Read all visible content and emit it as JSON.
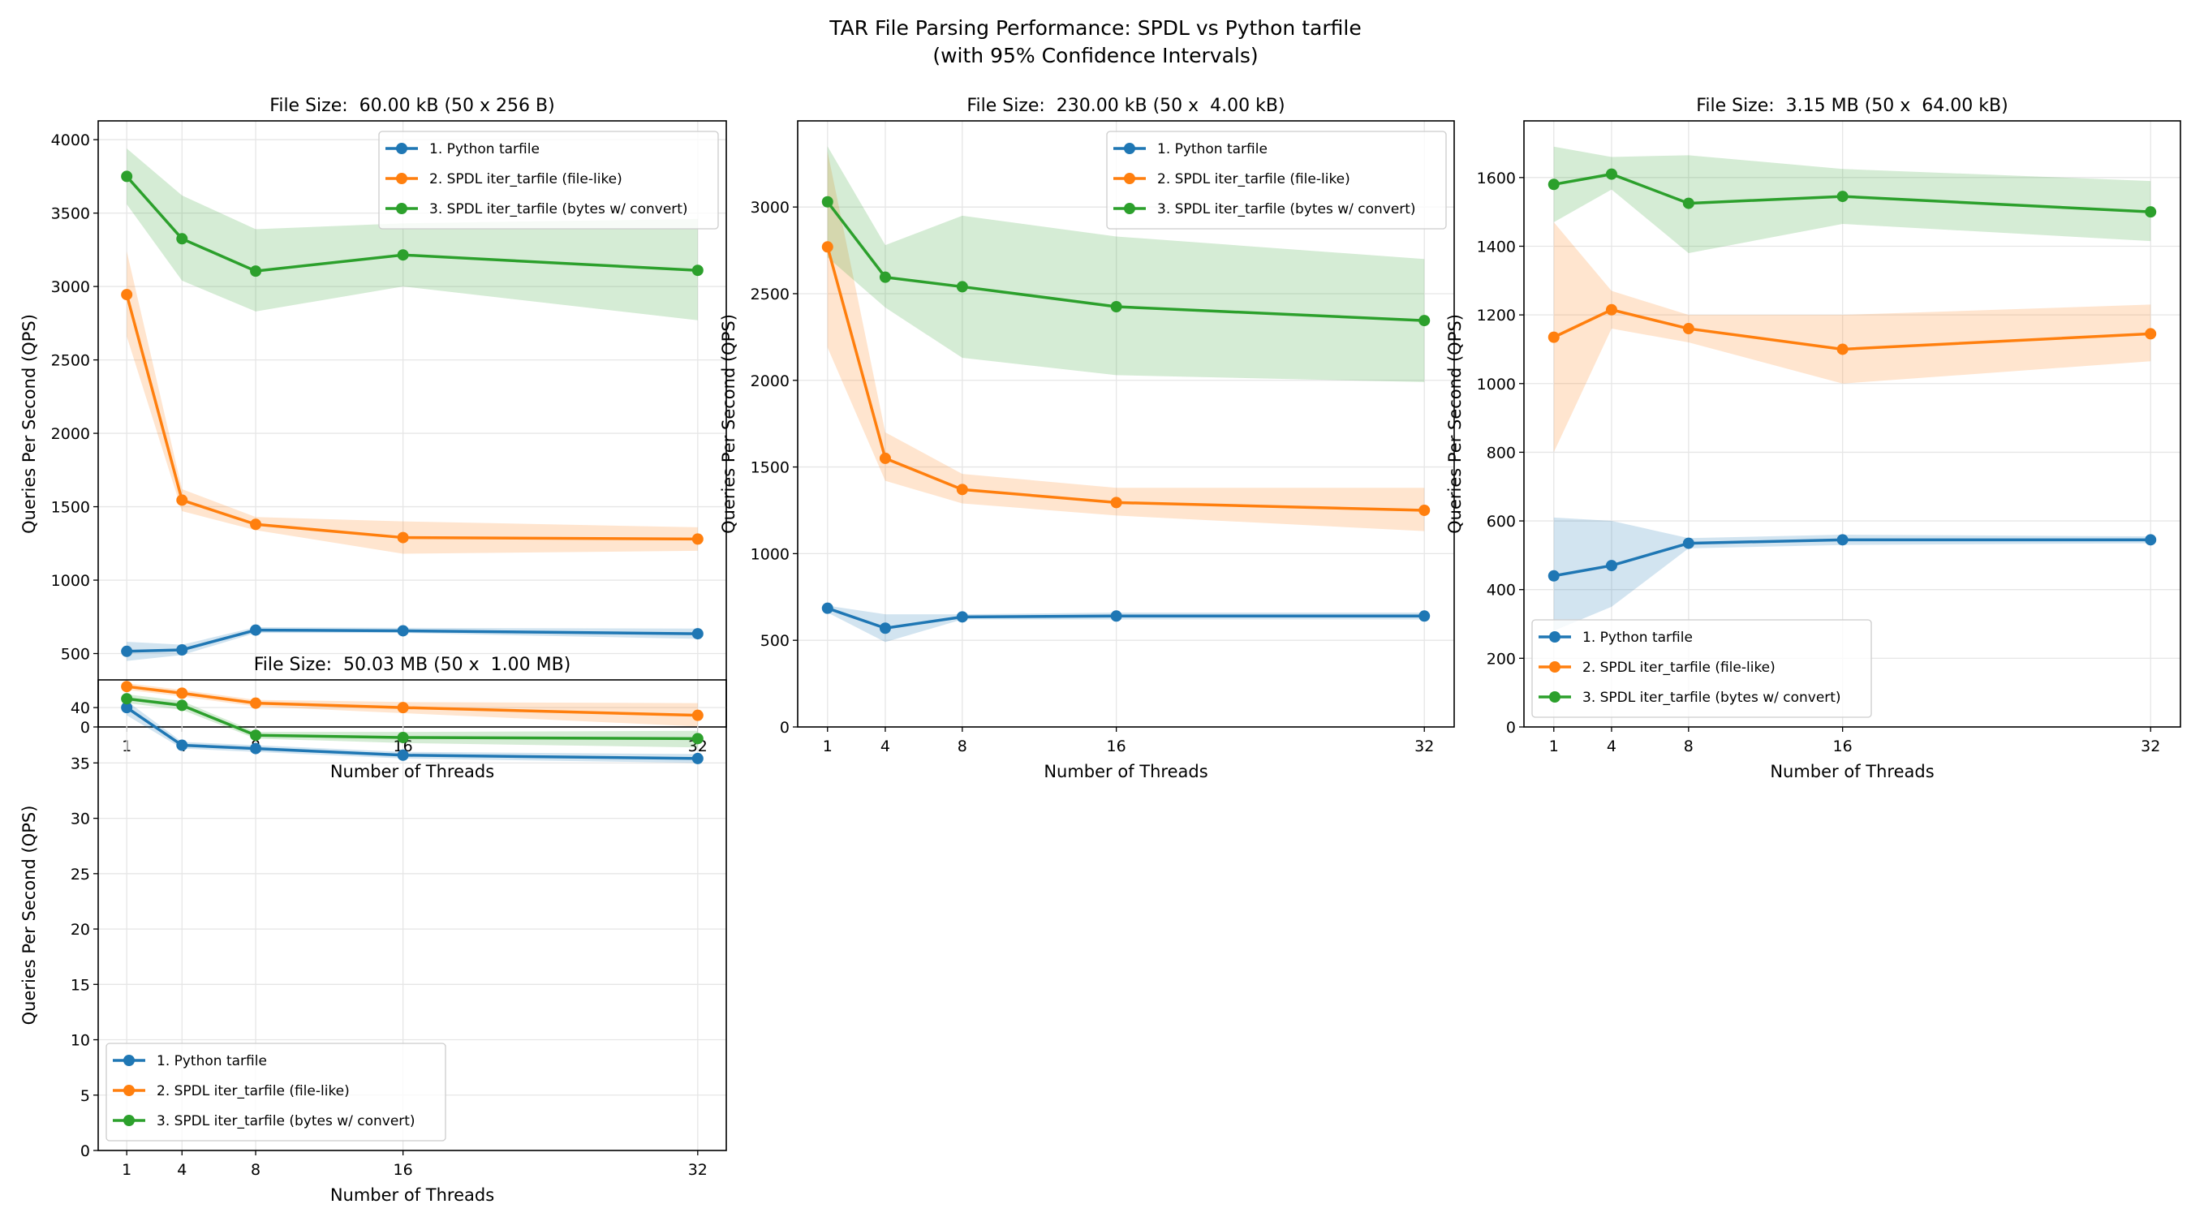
{
  "chart_data": {
    "title": "TAR File Parsing Performance: SPDL vs Python tarfile",
    "subtitle": "(with 95% Confidence Intervals)",
    "colors": {
      "series1": "#1f77b4",
      "series2": "#ff7f0e",
      "series3": "#2ca02c"
    },
    "panels": [
      {
        "type": "line",
        "title": "File Size:  60.00 kB (50 x 256 B)",
        "xlabel": "Number of Threads",
        "ylabel": "Queries Per Second (QPS)",
        "x": [
          1,
          4,
          8,
          16,
          32
        ],
        "xticks": [
          "1",
          "4",
          "8",
          "16",
          "32"
        ],
        "yticks": [
          0,
          500,
          1000,
          1500,
          2000,
          2500,
          3000,
          3500,
          4000
        ],
        "ylim": [
          0,
          4128
        ],
        "xlim": [
          -0.55,
          33.55
        ],
        "grid": true,
        "legend_position": "upper-right",
        "series": [
          {
            "name": "1. Python tarfile",
            "values": [
              515,
              525,
              660,
              655,
              635
            ],
            "ci_low": [
              450,
              490,
              640,
              640,
              600
            ],
            "ci_high": [
              580,
              560,
              680,
              675,
              670
            ]
          },
          {
            "name": "2. SPDL iter_tarfile (file-like)",
            "values": [
              2945,
              1545,
              1380,
              1290,
              1280
            ],
            "ci_low": [
              2660,
              1470,
              1340,
              1180,
              1200
            ],
            "ci_high": [
              3240,
              1620,
              1430,
              1400,
              1360
            ]
          },
          {
            "name": "3. SPDL iter_tarfile (bytes w/ convert)",
            "values": [
              3750,
              3325,
              3105,
              3215,
              3110
            ],
            "ci_low": [
              3560,
              3040,
              2830,
              3000,
              2770
            ],
            "ci_high": [
              3940,
              3620,
              3390,
              3430,
              3460
            ]
          }
        ]
      },
      {
        "type": "line",
        "title": "File Size:  230.00 kB (50 x  4.00 kB)",
        "xlabel": "Number of Threads",
        "ylabel": "Queries Per Second (QPS)",
        "x": [
          1,
          4,
          8,
          16,
          32
        ],
        "xticks": [
          "1",
          "4",
          "8",
          "16",
          "32"
        ],
        "yticks": [
          0,
          500,
          1000,
          1500,
          2000,
          2500,
          3000
        ],
        "ylim": [
          0,
          3497
        ],
        "xlim": [
          -0.55,
          33.55
        ],
        "grid": true,
        "legend_position": "upper-right",
        "series": [
          {
            "name": "1. Python tarfile",
            "values": [
              685,
              570,
              635,
              640,
              640
            ],
            "ci_low": [
              660,
              490,
              620,
              620,
              620
            ],
            "ci_high": [
              700,
              650,
              650,
              660,
              660
            ]
          },
          {
            "name": "2. SPDL iter_tarfile (file-like)",
            "values": [
              2770,
              1550,
              1370,
              1295,
              1250
            ],
            "ci_low": [
              2190,
              1420,
              1290,
              1220,
              1130
            ],
            "ci_high": [
              3320,
              1700,
              1460,
              1380,
              1380
            ]
          },
          {
            "name": "3. SPDL iter_tarfile (bytes w/ convert)",
            "values": [
              3030,
              2595,
              2540,
              2425,
              2345
            ],
            "ci_low": [
              2710,
              2420,
              2130,
              2030,
              1990
            ],
            "ci_high": [
              3350,
              2780,
              2950,
              2830,
              2700
            ]
          }
        ]
      },
      {
        "type": "line",
        "title": "File Size:  3.15 MB (50 x  64.00 kB)",
        "xlabel": "Number of Threads",
        "ylabel": "Queries Per Second (QPS)",
        "x": [
          1,
          4,
          8,
          16,
          32
        ],
        "xticks": [
          "1",
          "4",
          "8",
          "16",
          "32"
        ],
        "yticks": [
          0,
          200,
          400,
          600,
          800,
          1000,
          1200,
          1400,
          1600
        ],
        "ylim": [
          0,
          1765
        ],
        "xlim": [
          -0.55,
          33.55
        ],
        "grid": true,
        "legend_position": "lower-left",
        "series": [
          {
            "name": "1. Python tarfile",
            "values": [
              440,
              470,
              535,
              545,
              545
            ],
            "ci_low": [
              280,
              350,
              520,
              530,
              535
            ],
            "ci_high": [
              610,
              600,
              550,
              560,
              555
            ]
          },
          {
            "name": "2. SPDL iter_tarfile (file-like)",
            "values": [
              1135,
              1215,
              1160,
              1100,
              1145
            ],
            "ci_low": [
              800,
              1160,
              1120,
              1000,
              1065
            ],
            "ci_high": [
              1470,
              1270,
              1200,
              1200,
              1230
            ]
          },
          {
            "name": "3. SPDL iter_tarfile (bytes w/ convert)",
            "values": [
              1580,
              1610,
              1525,
              1545,
              1500
            ],
            "ci_low": [
              1470,
              1565,
              1380,
              1465,
              1415
            ],
            "ci_high": [
              1690,
              1660,
              1665,
              1625,
              1590
            ]
          }
        ]
      },
      {
        "type": "line",
        "title": "File Size:  50.03 MB (50 x  1.00 MB)",
        "xlabel": "Number of Threads",
        "ylabel": "Queries Per Second (QPS)",
        "x": [
          1,
          4,
          8,
          16,
          32
        ],
        "xticks": [
          "1",
          "4",
          "8",
          "16",
          "32"
        ],
        "yticks": [
          0,
          5,
          10,
          15,
          20,
          25,
          30,
          35,
          40
        ],
        "ylim": [
          0,
          42.5
        ],
        "xlim": [
          -0.55,
          33.55
        ],
        "grid": true,
        "legend_position": "lower-left",
        "series": [
          {
            "name": "1. Python tarfile",
            "values": [
              40.0,
              36.6,
              36.3,
              35.7,
              35.4
            ],
            "ci_low": [
              39.3,
              36.3,
              36.0,
              35.4,
              35.0
            ],
            "ci_high": [
              40.6,
              36.9,
              36.6,
              36.0,
              35.8
            ]
          },
          {
            "name": "2. SPDL iter_tarfile (file-like)",
            "values": [
              41.9,
              41.3,
              40.4,
              40.0,
              39.3
            ],
            "ci_low": [
              41.6,
              41.0,
              40.1,
              39.5,
              38.3
            ],
            "ci_high": [
              42.2,
              41.6,
              40.7,
              40.5,
              40.4
            ]
          },
          {
            "name": "3. SPDL iter_tarfile (bytes w/ convert)",
            "values": [
              40.8,
              40.2,
              37.5,
              37.3,
              37.2
            ],
            "ci_low": [
              40.4,
              39.8,
              37.2,
              36.8,
              36.4
            ],
            "ci_high": [
              41.2,
              40.6,
              37.8,
              37.8,
              37.9
            ]
          }
        ]
      }
    ]
  }
}
